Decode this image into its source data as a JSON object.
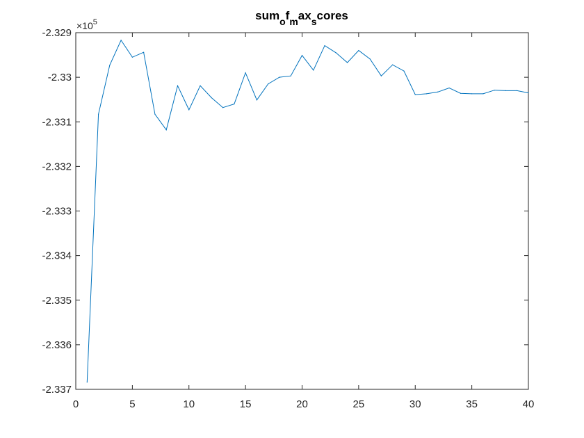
{
  "chart_data": {
    "type": "line",
    "title": {
      "parts": [
        {
          "text": "sum",
          "sub": false
        },
        {
          "text": "o",
          "sub": true
        },
        {
          "text": "f",
          "sub": false
        },
        {
          "text": "m",
          "sub": true
        },
        {
          "text": "ax",
          "sub": false
        },
        {
          "text": "s",
          "sub": true
        },
        {
          "text": "cores",
          "sub": false
        }
      ]
    },
    "xlabel": "",
    "ylabel": "",
    "xlim": [
      0,
      40
    ],
    "ylim": [
      -2.337,
      -2.329
    ],
    "y_exponent": {
      "prefix": "×10",
      "power": "5"
    },
    "xticks": [
      0,
      5,
      10,
      15,
      20,
      25,
      30,
      35,
      40
    ],
    "xtick_labels": [
      "0",
      "5",
      "10",
      "15",
      "20",
      "25",
      "30",
      "35",
      "40"
    ],
    "yticks": [
      -2.337,
      -2.336,
      -2.335,
      -2.334,
      -2.333,
      -2.332,
      -2.331,
      -2.33,
      -2.329
    ],
    "ytick_labels": [
      "-2.337",
      "-2.336",
      "-2.335",
      "-2.334",
      "-2.333",
      "-2.332",
      "-2.331",
      "-2.33",
      "-2.329"
    ],
    "grid": false,
    "line_color": "#0072BD",
    "series": [
      {
        "x": [
          1,
          2,
          3,
          4,
          5,
          6,
          7,
          8,
          9,
          10,
          11,
          12,
          13,
          14,
          15,
          16,
          17,
          18,
          19,
          20,
          21,
          22,
          23,
          24,
          25,
          26,
          27,
          28,
          29,
          30,
          31,
          32,
          33,
          34,
          35,
          36,
          37,
          38,
          39,
          40
        ],
        "values": [
          -2.33684,
          -2.33083,
          -2.32973,
          -2.32917,
          -2.32955,
          -2.32944,
          -2.33083,
          -2.33118,
          -2.33019,
          -2.33073,
          -2.33019,
          -2.33046,
          -2.33068,
          -2.3306,
          -2.3299,
          -2.33051,
          -2.33015,
          -2.33,
          -2.32997,
          -2.32951,
          -2.32984,
          -2.32929,
          -2.32945,
          -2.32967,
          -2.3294,
          -2.32959,
          -2.32997,
          -2.32972,
          -2.32986,
          -2.33039,
          -2.33037,
          -2.33033,
          -2.33024,
          -2.33036,
          -2.33037,
          -2.33037,
          -2.33029,
          -2.3303,
          -2.3303,
          -2.33035
        ]
      }
    ]
  }
}
